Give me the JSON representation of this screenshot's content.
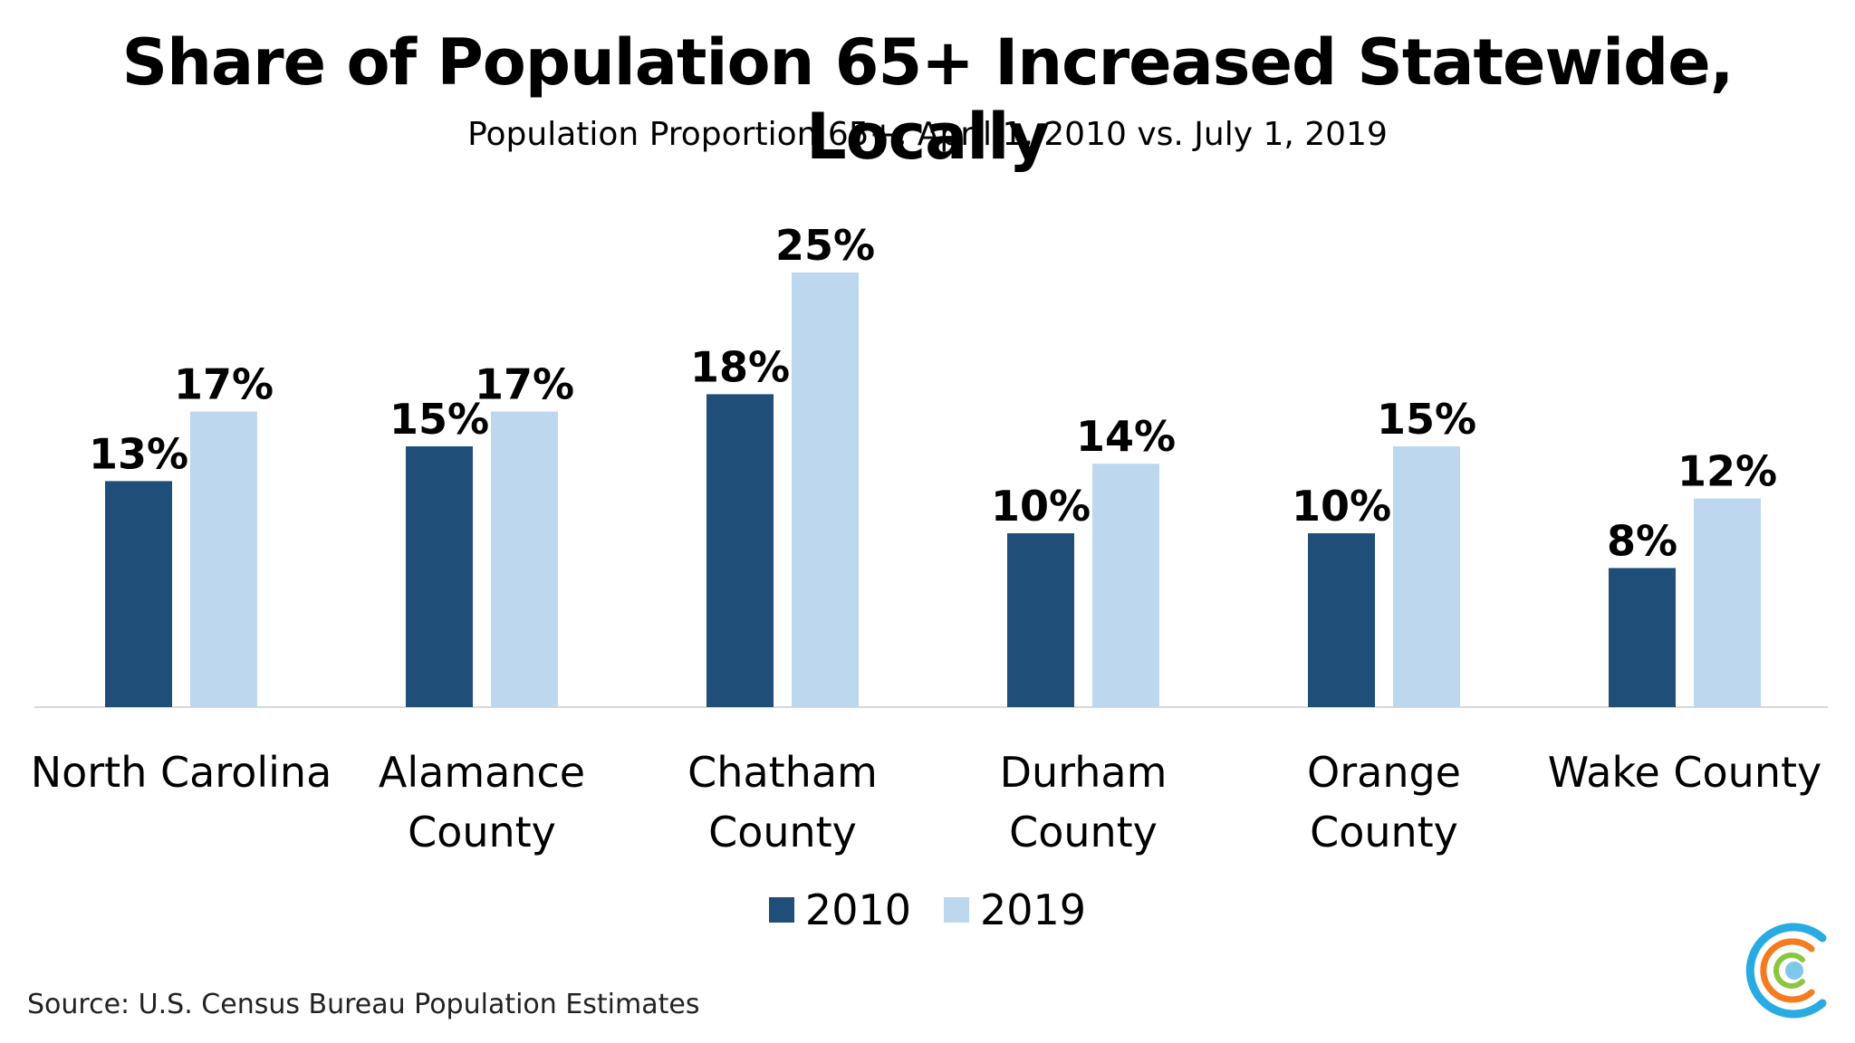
{
  "chart_data": {
    "type": "bar",
    "title": "Share of Population 65+ Increased Statewide, Locally",
    "subtitle": "Population Proportion 65+, April 1, 2010 vs. July 1, 2019",
    "categories": [
      "North Carolina",
      "Alamance County",
      "Chatham County",
      "Durham County",
      "Orange County",
      "Wake County"
    ],
    "series": [
      {
        "name": "2010",
        "color": "#1f4e79",
        "values": [
          13,
          15,
          18,
          10,
          10,
          8
        ],
        "labels": [
          "13%",
          "15%",
          "18%",
          "10%",
          "10%",
          "8%"
        ]
      },
      {
        "name": "2019",
        "color": "#bdd7ee",
        "values": [
          17,
          17,
          25,
          14,
          15,
          12
        ],
        "labels": [
          "17%",
          "17%",
          "25%",
          "14%",
          "15%",
          "12%"
        ]
      }
    ],
    "ylim": [
      0,
      30
    ],
    "grid": false,
    "legend": "bottom"
  },
  "source": "Source: U.S. Census Bureau Population Estimates",
  "logo": {
    "icon": "concentric-c-logo-icon",
    "colors": [
      "#29abe2",
      "#f47b20",
      "#8cc63f"
    ]
  }
}
